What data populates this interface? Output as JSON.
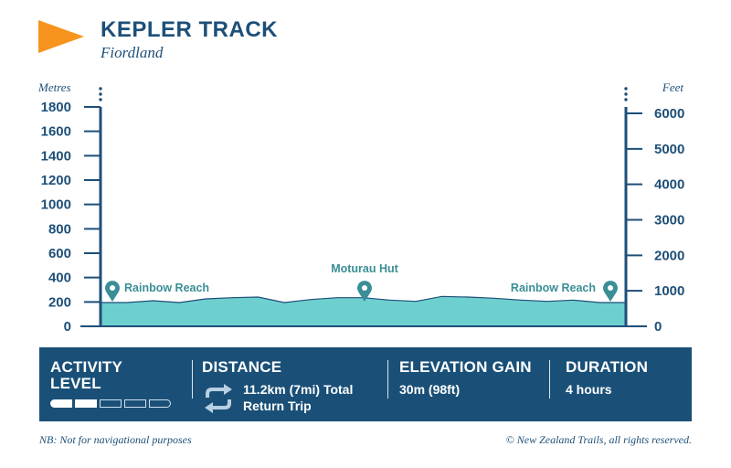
{
  "header": {
    "title": "KEPLER TRACK",
    "subtitle": "Fiordland"
  },
  "colors": {
    "navy": "#1d4f78",
    "panel": "#1a5078",
    "profile_fill": "#6ecfcf",
    "accent": "#f7941d"
  },
  "chart_data": {
    "type": "area",
    "y_left_label": "Metres",
    "y_right_label": "Feet",
    "y_left_ticks": [
      0,
      200,
      400,
      600,
      800,
      1000,
      1200,
      1400,
      1600,
      1800
    ],
    "y_right_ticks": [
      0,
      1000,
      2000,
      3000,
      4000,
      5000,
      6000
    ],
    "y_left_range": [
      0,
      1800
    ],
    "y_right_range": [
      0,
      6000
    ],
    "profile_fraction": [
      0.0,
      0.05,
      0.1,
      0.15,
      0.2,
      0.25,
      0.3,
      0.35,
      0.4,
      0.45,
      0.5,
      0.55,
      0.6,
      0.65,
      0.7,
      0.75,
      0.8,
      0.85,
      0.9,
      0.95,
      1.0
    ],
    "profile_elevation_m": [
      195,
      195,
      210,
      195,
      225,
      235,
      240,
      195,
      220,
      235,
      235,
      215,
      205,
      245,
      240,
      230,
      215,
      205,
      215,
      195,
      195
    ],
    "markers": [
      {
        "label": "Rainbow Reach",
        "fraction": 0.0
      },
      {
        "label": "Moturau Hut",
        "fraction": 0.5
      },
      {
        "label": "Rainbow Reach",
        "fraction": 1.0
      }
    ]
  },
  "info": {
    "activity": {
      "heading_line1": "ACTIVITY",
      "heading_line2": "LEVEL",
      "level": 2,
      "max": 5
    },
    "distance": {
      "heading": "DISTANCE",
      "value_line1": "11.2km (7mi) Total",
      "value_line2": "Return Trip",
      "icon": "return-loop-icon"
    },
    "elevation": {
      "heading": "ELEVATION GAIN",
      "value": "30m (98ft)"
    },
    "duration": {
      "heading": "DURATION",
      "value": "4 hours"
    }
  },
  "footer": {
    "left": "NB: Not for navigational purposes",
    "right": "© New Zealand Trails, all rights reserved."
  }
}
